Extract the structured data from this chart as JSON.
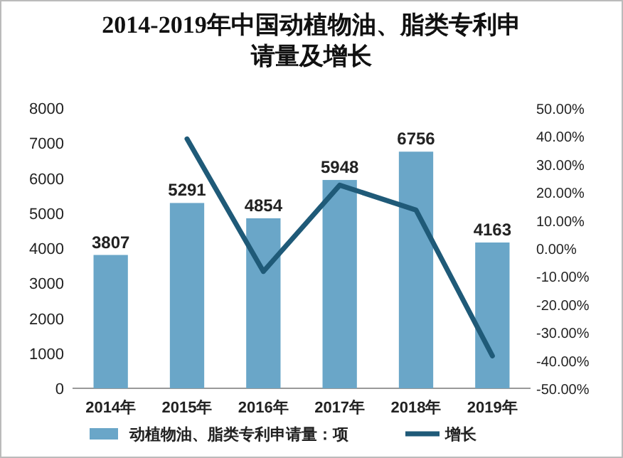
{
  "chart_data": {
    "type": "bar",
    "title": "2014-2019年中国动植物油、脂类专利申请量及增长",
    "categories": [
      "2014年",
      "2015年",
      "2016年",
      "2017年",
      "2018年",
      "2019年"
    ],
    "series": [
      {
        "name": "动植物油、脂类专利申请量：项",
        "color": "#6aa6c8",
        "values": [
          3807,
          5291,
          4854,
          5948,
          6756,
          4163
        ],
        "value_labels": [
          "3807",
          "5291",
          "4854",
          "5948",
          "6756",
          "4163"
        ]
      },
      {
        "name": "增长",
        "type": "line",
        "axis": "y2",
        "color": "#1f5a78",
        "values": [
          null,
          39.0,
          -8.3,
          22.5,
          13.6,
          -38.4
        ]
      }
    ],
    "ylim": [
      0,
      8000
    ],
    "yticks": [
      0,
      1000,
      2000,
      3000,
      4000,
      5000,
      6000,
      7000,
      8000
    ],
    "y2lim": [
      -50,
      50
    ],
    "y2ticks": [
      {
        "value": -50,
        "label": "-50.00%"
      },
      {
        "value": -40,
        "label": "-40.00%"
      },
      {
        "value": -30,
        "label": "-30.00%"
      },
      {
        "value": -20,
        "label": "-20.00%"
      },
      {
        "value": -10,
        "label": "-10.00%"
      },
      {
        "value": 0,
        "label": "0.00%"
      },
      {
        "value": 10,
        "label": "10.00%"
      },
      {
        "value": 20,
        "label": "20.00%"
      },
      {
        "value": 30,
        "label": "30.00%"
      },
      {
        "value": 40,
        "label": "40.00%"
      },
      {
        "value": 50,
        "label": "50.00%"
      }
    ],
    "legend": "bottom"
  }
}
